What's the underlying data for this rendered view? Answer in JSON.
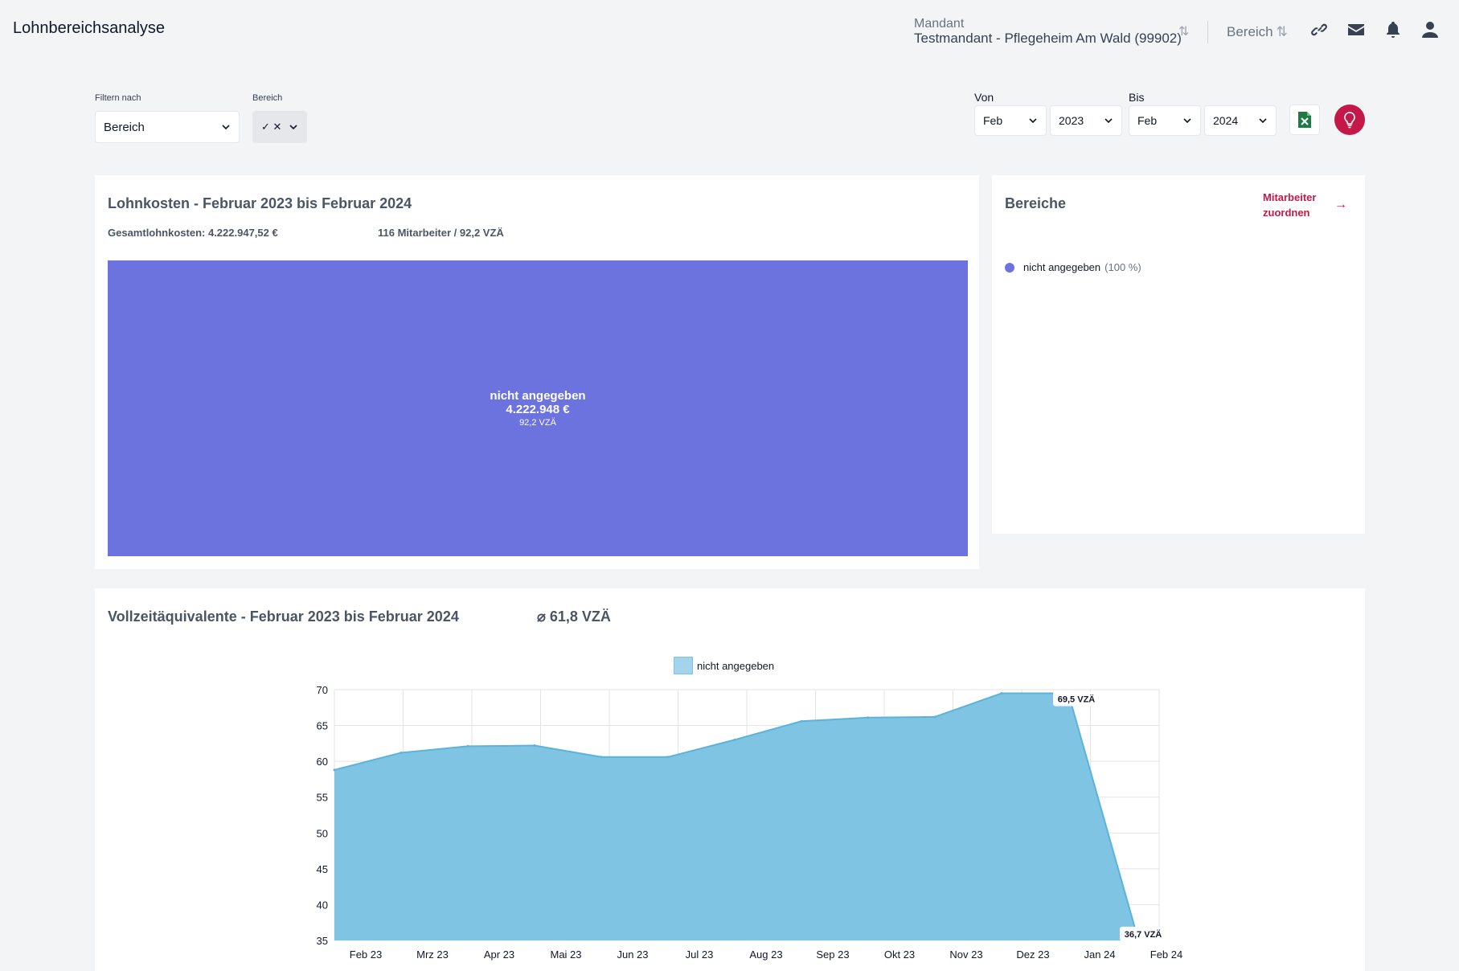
{
  "header": {
    "title": "Lohnbereichsanalyse",
    "mandant_label": "Mandant",
    "mandant_value": "Testmandant - Pflegeheim Am Wald (99902)",
    "sort_glyph": "⇅",
    "bereich_label": "Bereich",
    "icons": [
      "link-icon",
      "mail-icon",
      "bell-icon",
      "user-icon"
    ]
  },
  "filters": {
    "filter_by_label": "Filtern nach",
    "filter_by_value": "Bereich",
    "bereich_label": "Bereich",
    "bereich_value": "✓ ✕",
    "von_label": "Von",
    "von_month": "Feb",
    "von_year": "2023",
    "bis_label": "Bis",
    "bis_month": "Feb",
    "bis_year": "2024",
    "excel_icon": "excel-icon",
    "idea_icon": "lightbulb-icon"
  },
  "lohnkosten": {
    "title": "Lohnkosten - Februar 2023 bis Februar 2024",
    "total": "Gesamtlohnkosten: 4.222.947,52 €",
    "employees": "116 Mitarbeiter / 92,2 VZÄ",
    "treemap": {
      "name": "nicht angegeben",
      "value": "4.222.948 €",
      "vza": "92,2 VZÄ",
      "color": "#6c73de"
    }
  },
  "bereiche": {
    "title": "Bereiche",
    "assign_link": "Mitarbeiter zuordnen",
    "items": [
      {
        "name": "nicht angegeben",
        "pct": "(100 %)",
        "color": "#6c73de"
      }
    ]
  },
  "vza": {
    "title": "Vollzeitäquivalente - Februar 2023 bis Februar 2024",
    "avg": "⌀ 61,8 VZÄ"
  },
  "chart_data": {
    "type": "area",
    "categories": [
      "Feb 23",
      "Mrz 23",
      "Apr 23",
      "Mai 23",
      "Jun 23",
      "Jul 23",
      "Aug 23",
      "Sep 23",
      "Okt 23",
      "Nov 23",
      "Dez 23",
      "Jan 24",
      "Feb 24"
    ],
    "series": [
      {
        "name": "nicht angegeben",
        "values": [
          58.8,
          61.2,
          62.1,
          62.2,
          60.6,
          60.6,
          63.0,
          65.6,
          66.1,
          66.2,
          69.5,
          69.5,
          36.7
        ]
      }
    ],
    "ylim": [
      35,
      70
    ],
    "yticks": [
      35,
      40,
      45,
      50,
      55,
      60,
      65,
      70
    ],
    "grid": true,
    "legend": "top-center",
    "annotations": [
      {
        "category": "Jan 24",
        "text": "69,5 VZÄ"
      },
      {
        "category": "Feb 24",
        "text": "36,7 VZÄ"
      }
    ],
    "fill_color": "#7fc4e2",
    "line_color": "#5bb3dc"
  }
}
